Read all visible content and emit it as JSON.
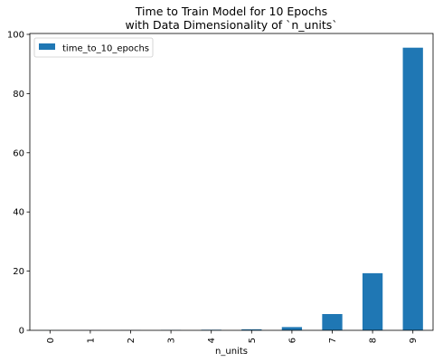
{
  "chart_data": {
    "type": "bar",
    "title_line1": "Time to Train Model for 10 Epochs",
    "title_line2": "with Data Dimensionality of `n_units`",
    "xlabel": "n_units",
    "ylabel": "",
    "categories": [
      "0",
      "1",
      "2",
      "3",
      "4",
      "5",
      "6",
      "7",
      "8",
      "9"
    ],
    "series": [
      {
        "name": "time_to_10_epochs",
        "color": "#1f77b4",
        "values": [
          0.02,
          0.03,
          0.05,
          0.1,
          0.2,
          0.35,
          1.1,
          5.5,
          19.3,
          95.5
        ]
      }
    ],
    "ylim": [
      0,
      100.3
    ],
    "yticks": [
      0,
      20,
      40,
      60,
      80,
      100
    ],
    "grid": false,
    "legend": "top-left"
  }
}
